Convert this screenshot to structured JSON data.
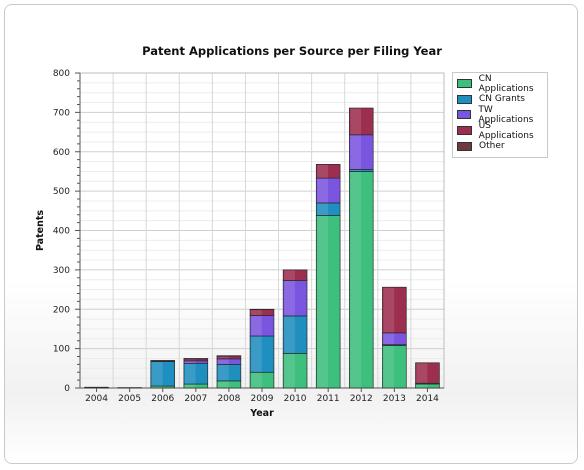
{
  "chart_data": {
    "type": "bar",
    "stacked": true,
    "title": "Patent Applications per Source per Filing Year",
    "xlabel": "Year",
    "ylabel": "Patents",
    "ylim": [
      0,
      800
    ],
    "yticks": [
      0,
      100,
      200,
      300,
      400,
      500,
      600,
      700,
      800
    ],
    "categories": [
      "2004",
      "2005",
      "2006",
      "2007",
      "2008",
      "2009",
      "2010",
      "2011",
      "2012",
      "2013",
      "2014"
    ],
    "grid": true,
    "legend_position": "top-right",
    "series": [
      {
        "name": "CN Applications",
        "color": "#3dbf7e",
        "values": [
          0,
          0,
          5,
          10,
          18,
          40,
          88,
          438,
          550,
          108,
          10
        ]
      },
      {
        "name": "CN Grants",
        "color": "#1f8fbf",
        "values": [
          0,
          0,
          62,
          52,
          42,
          92,
          95,
          32,
          5,
          2,
          2
        ]
      },
      {
        "name": "TW Applications",
        "color": "#7a55e0",
        "values": [
          0,
          0,
          1,
          7,
          14,
          52,
          90,
          63,
          88,
          30,
          0
        ]
      },
      {
        "name": "US Applications",
        "color": "#9c2f4f",
        "values": [
          2,
          1,
          2,
          5,
          7,
          15,
          27,
          35,
          68,
          116,
          52
        ]
      },
      {
        "name": "Other",
        "color": "#6e3a3a",
        "values": [
          0,
          0,
          0,
          1,
          1,
          1,
          0,
          0,
          0,
          0,
          0
        ]
      }
    ]
  }
}
